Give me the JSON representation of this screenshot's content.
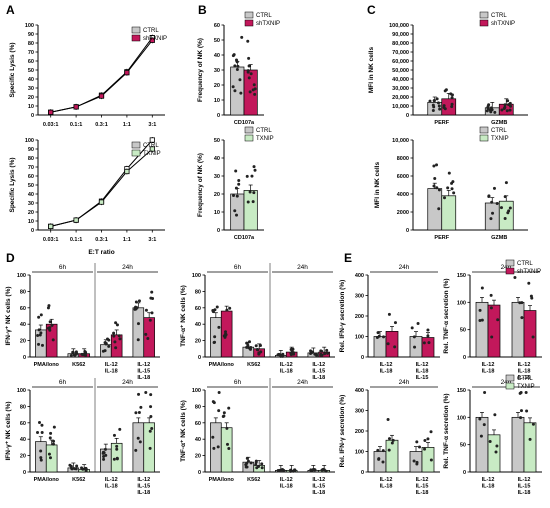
{
  "colors": {
    "ctrl": "#c8c8c8",
    "sh": "#c2185b",
    "tx": "#c8ebc4",
    "dark": "#222222"
  },
  "chart_data": [
    {
      "id": "A1",
      "panel_label": "A",
      "type": "line",
      "x": [
        "0.03:1",
        "0.1:1",
        "0.3:1",
        "1:1",
        "3:1"
      ],
      "series": [
        {
          "name": "CTRL",
          "values": [
            3,
            9,
            22,
            48,
            86
          ]
        },
        {
          "name": "shTXNIP",
          "values": [
            3,
            9,
            21,
            47,
            83
          ]
        }
      ],
      "ylabel": "Specific Lysis (%)",
      "xlabel": "",
      "ylim": [
        0,
        100
      ],
      "yticks": [
        0,
        10,
        20,
        30,
        40,
        50,
        60,
        70,
        80,
        90,
        100
      ],
      "legend": "top-left"
    },
    {
      "id": "A2",
      "panel_label": "",
      "type": "line",
      "x": [
        "0.03:1",
        "0.1:1",
        "0.3:1",
        "1:1",
        "3:1"
      ],
      "series": [
        {
          "name": "CTRL",
          "values": [
            4,
            11,
            32,
            68,
            100
          ]
        },
        {
          "name": "TXNIP",
          "values": [
            4,
            11,
            31,
            65,
            90
          ]
        }
      ],
      "ylabel": "Specific Lysis (%)",
      "xlabel": "E:T ratio",
      "ylim": [
        0,
        100
      ],
      "yticks": [
        0,
        10,
        20,
        30,
        40,
        50,
        60,
        70,
        80,
        90,
        100
      ],
      "legend": "top-left"
    },
    {
      "id": "B1",
      "panel_label": "B",
      "type": "bar",
      "categories": [
        "CD107a"
      ],
      "series": [
        {
          "name": "CTRL",
          "values": [
            32
          ]
        },
        {
          "name": "shTXNIP",
          "values": [
            30
          ]
        }
      ],
      "ylabel": "Frequency of NK (%)",
      "ylim": [
        0,
        60
      ],
      "yticks": [
        0,
        10,
        20,
        30,
        40,
        50,
        60
      ],
      "legend": "top-right"
    },
    {
      "id": "B2",
      "panel_label": "",
      "type": "bar",
      "categories": [
        "CD107a"
      ],
      "series": [
        {
          "name": "CTRL",
          "values": [
            20
          ]
        },
        {
          "name": "TXNIP",
          "values": [
            22
          ]
        }
      ],
      "ylabel": "Frequency of NK (%)",
      "ylim": [
        0,
        50
      ],
      "yticks": [
        0,
        10,
        20,
        30,
        40,
        50
      ],
      "legend": "top-right"
    },
    {
      "id": "C1",
      "panel_label": "C",
      "type": "bar",
      "categories": [
        "PERF",
        "GZMB"
      ],
      "series": [
        {
          "name": "CTRL",
          "values": [
            14000,
            8000
          ]
        },
        {
          "name": "shTXNIP",
          "values": [
            18000,
            12000
          ]
        }
      ],
      "ylabel": "MFI in NK cells",
      "ylim": [
        0,
        100000
      ],
      "yticks": [
        "0",
        "10,000",
        "20,000",
        "30,000",
        "40,000",
        "50,000",
        "60,000",
        "70,000",
        "80,000",
        "90,000",
        "100,000"
      ],
      "legend": "top-right"
    },
    {
      "id": "C2",
      "panel_label": "",
      "type": "bar",
      "categories": [
        "PERF",
        "GZMB"
      ],
      "series": [
        {
          "name": "CTRL",
          "values": [
            4600,
            3000
          ]
        },
        {
          "name": "TXNIP",
          "values": [
            3800,
            3200
          ]
        }
      ],
      "ylabel": "MFI in NK cells",
      "ylim": [
        0,
        10000
      ],
      "yticks": [
        "0",
        "2000",
        "4000",
        "6000",
        "8000",
        "10,000"
      ],
      "legend": "top-right"
    },
    {
      "id": "D1",
      "panel_label": "D",
      "type": "bar",
      "categories": [
        "PMA/Iono",
        "K562",
        "IL-12\nIL-18",
        "IL-12\nIL-15\nIL-18"
      ],
      "groups": [
        {
          "label": "6h",
          "from": 0,
          "to": 1
        },
        {
          "label": "24h",
          "from": 2,
          "to": 3
        }
      ],
      "series": [
        {
          "name": "CTRL",
          "values": [
            33,
            4,
            15,
            60
          ]
        },
        {
          "name": "shTXNIP",
          "values": [
            40,
            4,
            27,
            48
          ]
        }
      ],
      "ylabel": "IFN-γ⁺ NK cells (%)",
      "ylim": [
        0,
        100
      ],
      "yticks": [
        0,
        20,
        40,
        60,
        80,
        100
      ]
    },
    {
      "id": "D2",
      "panel_label": "",
      "type": "bar",
      "categories": [
        "PMA/Iono",
        "K562",
        "IL-12\nIL-18",
        "IL-12\nIL-15\nIL-18"
      ],
      "groups": [
        {
          "label": "6h",
          "from": 0,
          "to": 1
        },
        {
          "label": "24h",
          "from": 2,
          "to": 3
        }
      ],
      "series": [
        {
          "name": "CTRL",
          "values": [
            48,
            12,
            2,
            5
          ]
        },
        {
          "name": "shTXNIP",
          "values": [
            56,
            10,
            6,
            6
          ]
        }
      ],
      "ylabel": "TNF-α⁺ NK cells (%)",
      "ylim": [
        0,
        100
      ],
      "yticks": [
        0,
        20,
        40,
        60,
        80,
        100
      ]
    },
    {
      "id": "D3",
      "panel_label": "",
      "type": "bar",
      "categories": [
        "PMA/Iono",
        "K562",
        "IL-12\nIL-18",
        "IL-12\nIL-15\nIL-18"
      ],
      "groups": [
        {
          "label": "6h",
          "from": 0,
          "to": 1
        },
        {
          "label": "24h",
          "from": 2,
          "to": 3
        }
      ],
      "series": [
        {
          "name": "CTRL",
          "values": [
            37,
            5,
            28,
            60
          ]
        },
        {
          "name": "TXNIP",
          "values": [
            33,
            3,
            35,
            60
          ]
        }
      ],
      "ylabel": "IFN-γ⁺ NK cells (%)",
      "ylim": [
        0,
        100
      ],
      "yticks": [
        0,
        20,
        40,
        60,
        80,
        100
      ]
    },
    {
      "id": "D4",
      "panel_label": "",
      "type": "bar",
      "categories": [
        "PMA/Iono",
        "K562",
        "IL-12\nIL-18",
        "IL-12\nIL-15\nIL-18"
      ],
      "groups": [
        {
          "label": "6h",
          "from": 0,
          "to": 1
        },
        {
          "label": "24h",
          "from": 2,
          "to": 3
        }
      ],
      "series": [
        {
          "name": "CTRL",
          "values": [
            60,
            12,
            2,
            2
          ]
        },
        {
          "name": "TXNIP",
          "values": [
            54,
            8,
            2,
            2
          ]
        }
      ],
      "ylabel": "TNF-α⁺ NK cells (%)",
      "ylim": [
        0,
        100
      ],
      "yticks": [
        0,
        20,
        40,
        60,
        80,
        100
      ]
    },
    {
      "id": "E1",
      "panel_label": "E",
      "type": "bar",
      "categories": [
        "IL-12\nIL-18",
        "IL-12\nIL-18\nIL-15"
      ],
      "groups": [
        {
          "label": "24h",
          "from": 0,
          "to": 1
        }
      ],
      "series": [
        {
          "name": "CTRL",
          "values": [
            100,
            100
          ]
        },
        {
          "name": "shTXNIP",
          "values": [
            125,
            95
          ]
        }
      ],
      "ylabel": "Rel. IFN-γ secretion (%)",
      "ylim": [
        0,
        400
      ],
      "yticks": [
        0,
        100,
        200,
        300,
        400
      ]
    },
    {
      "id": "E2",
      "panel_label": "",
      "type": "bar",
      "categories": [
        "IL-12\nIL-18",
        "IL-12\nIL-18\nIL-15"
      ],
      "groups": [
        {
          "label": "24h",
          "from": 0,
          "to": 1
        }
      ],
      "series": [
        {
          "name": "CTRL",
          "values": [
            100,
            100
          ]
        },
        {
          "name": "shTXNIP",
          "values": [
            95,
            85
          ]
        }
      ],
      "ylabel": "Rel. TNF-α secretion (%)",
      "ylim": [
        0,
        150
      ],
      "yticks": [
        0,
        50,
        100,
        150
      ],
      "legend": "top-right"
    },
    {
      "id": "E3",
      "panel_label": "",
      "type": "bar",
      "categories": [
        "IL-12\nIL-18",
        "IL-12\nIL-15\nIL-18"
      ],
      "groups": [
        {
          "label": "24h",
          "from": 0,
          "to": 1
        }
      ],
      "series": [
        {
          "name": "CTRL",
          "values": [
            100,
            100
          ]
        },
        {
          "name": "TXNIP",
          "values": [
            155,
            120
          ]
        }
      ],
      "ylabel": "Rel. IFN-γ secretion (%)",
      "ylim": [
        0,
        400
      ],
      "yticks": [
        0,
        100,
        200,
        300,
        400
      ]
    },
    {
      "id": "E4",
      "panel_label": "",
      "type": "bar",
      "categories": [
        "IL-12\nIL-18",
        "IL-12\nIL-15\nIL-18"
      ],
      "groups": [
        {
          "label": "24h",
          "from": 0,
          "to": 1
        }
      ],
      "series": [
        {
          "name": "CTRL",
          "values": [
            100,
            100
          ]
        },
        {
          "name": "TXNIP",
          "values": [
            68,
            90
          ]
        }
      ],
      "ylabel": "Rel. TNF-α secretion (%)",
      "ylim": [
        0,
        150
      ],
      "yticks": [
        0,
        50,
        100,
        150
      ],
      "legend": "top-right"
    }
  ]
}
